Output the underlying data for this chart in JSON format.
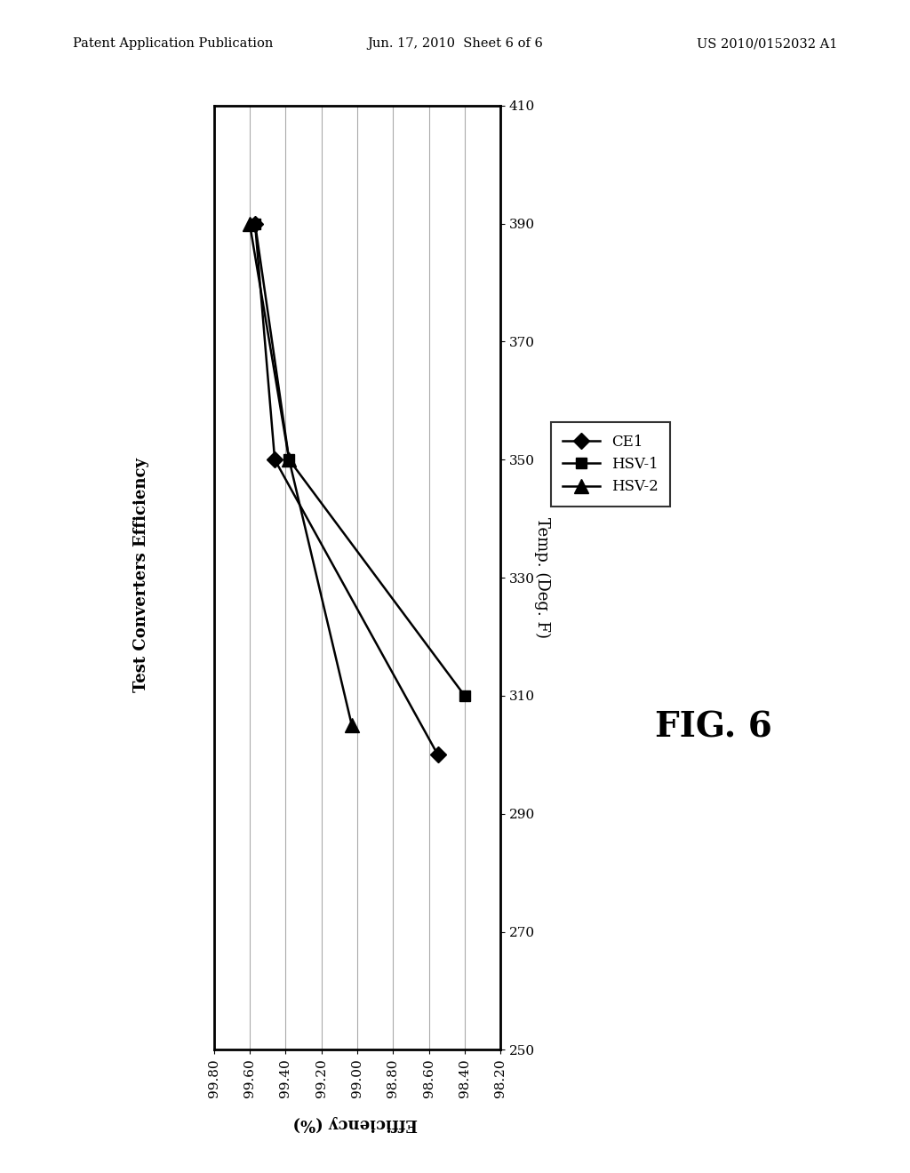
{
  "title": "Test Converters Efficiency",
  "xlabel": "Efficiency (%)",
  "ylabel": "Temp. (Deg. F)",
  "xlim_left": 99.8,
  "xlim_right": 98.2,
  "ylim_bottom": 250,
  "ylim_top": 410,
  "xticks": [
    99.8,
    99.6,
    99.4,
    99.2,
    99.0,
    98.8,
    98.6,
    98.4,
    98.2
  ],
  "yticks": [
    250,
    270,
    290,
    310,
    330,
    350,
    370,
    390,
    410
  ],
  "series": [
    {
      "name": "CE1",
      "x": [
        99.57,
        99.46,
        98.55
      ],
      "y": [
        390,
        350,
        300
      ],
      "marker": "D",
      "markersize": 9,
      "color": "black",
      "linewidth": 1.8
    },
    {
      "name": "HSV-1",
      "x": [
        99.57,
        99.38,
        98.4
      ],
      "y": [
        390,
        350,
        310
      ],
      "marker": "s",
      "markersize": 9,
      "color": "black",
      "linewidth": 1.8
    },
    {
      "name": "HSV-2",
      "x": [
        99.6,
        99.38,
        99.03
      ],
      "y": [
        390,
        350,
        305
      ],
      "marker": "^",
      "markersize": 11,
      "color": "black",
      "linewidth": 1.8
    }
  ],
  "background_color": "#ffffff",
  "grid_color": "#aaaaaa",
  "header_left": "Patent Application Publication",
  "header_center": "Jun. 17, 2010  Sheet 6 of 6",
  "header_right": "US 2010/0152032 A1",
  "fig_label": "FIG. 6"
}
